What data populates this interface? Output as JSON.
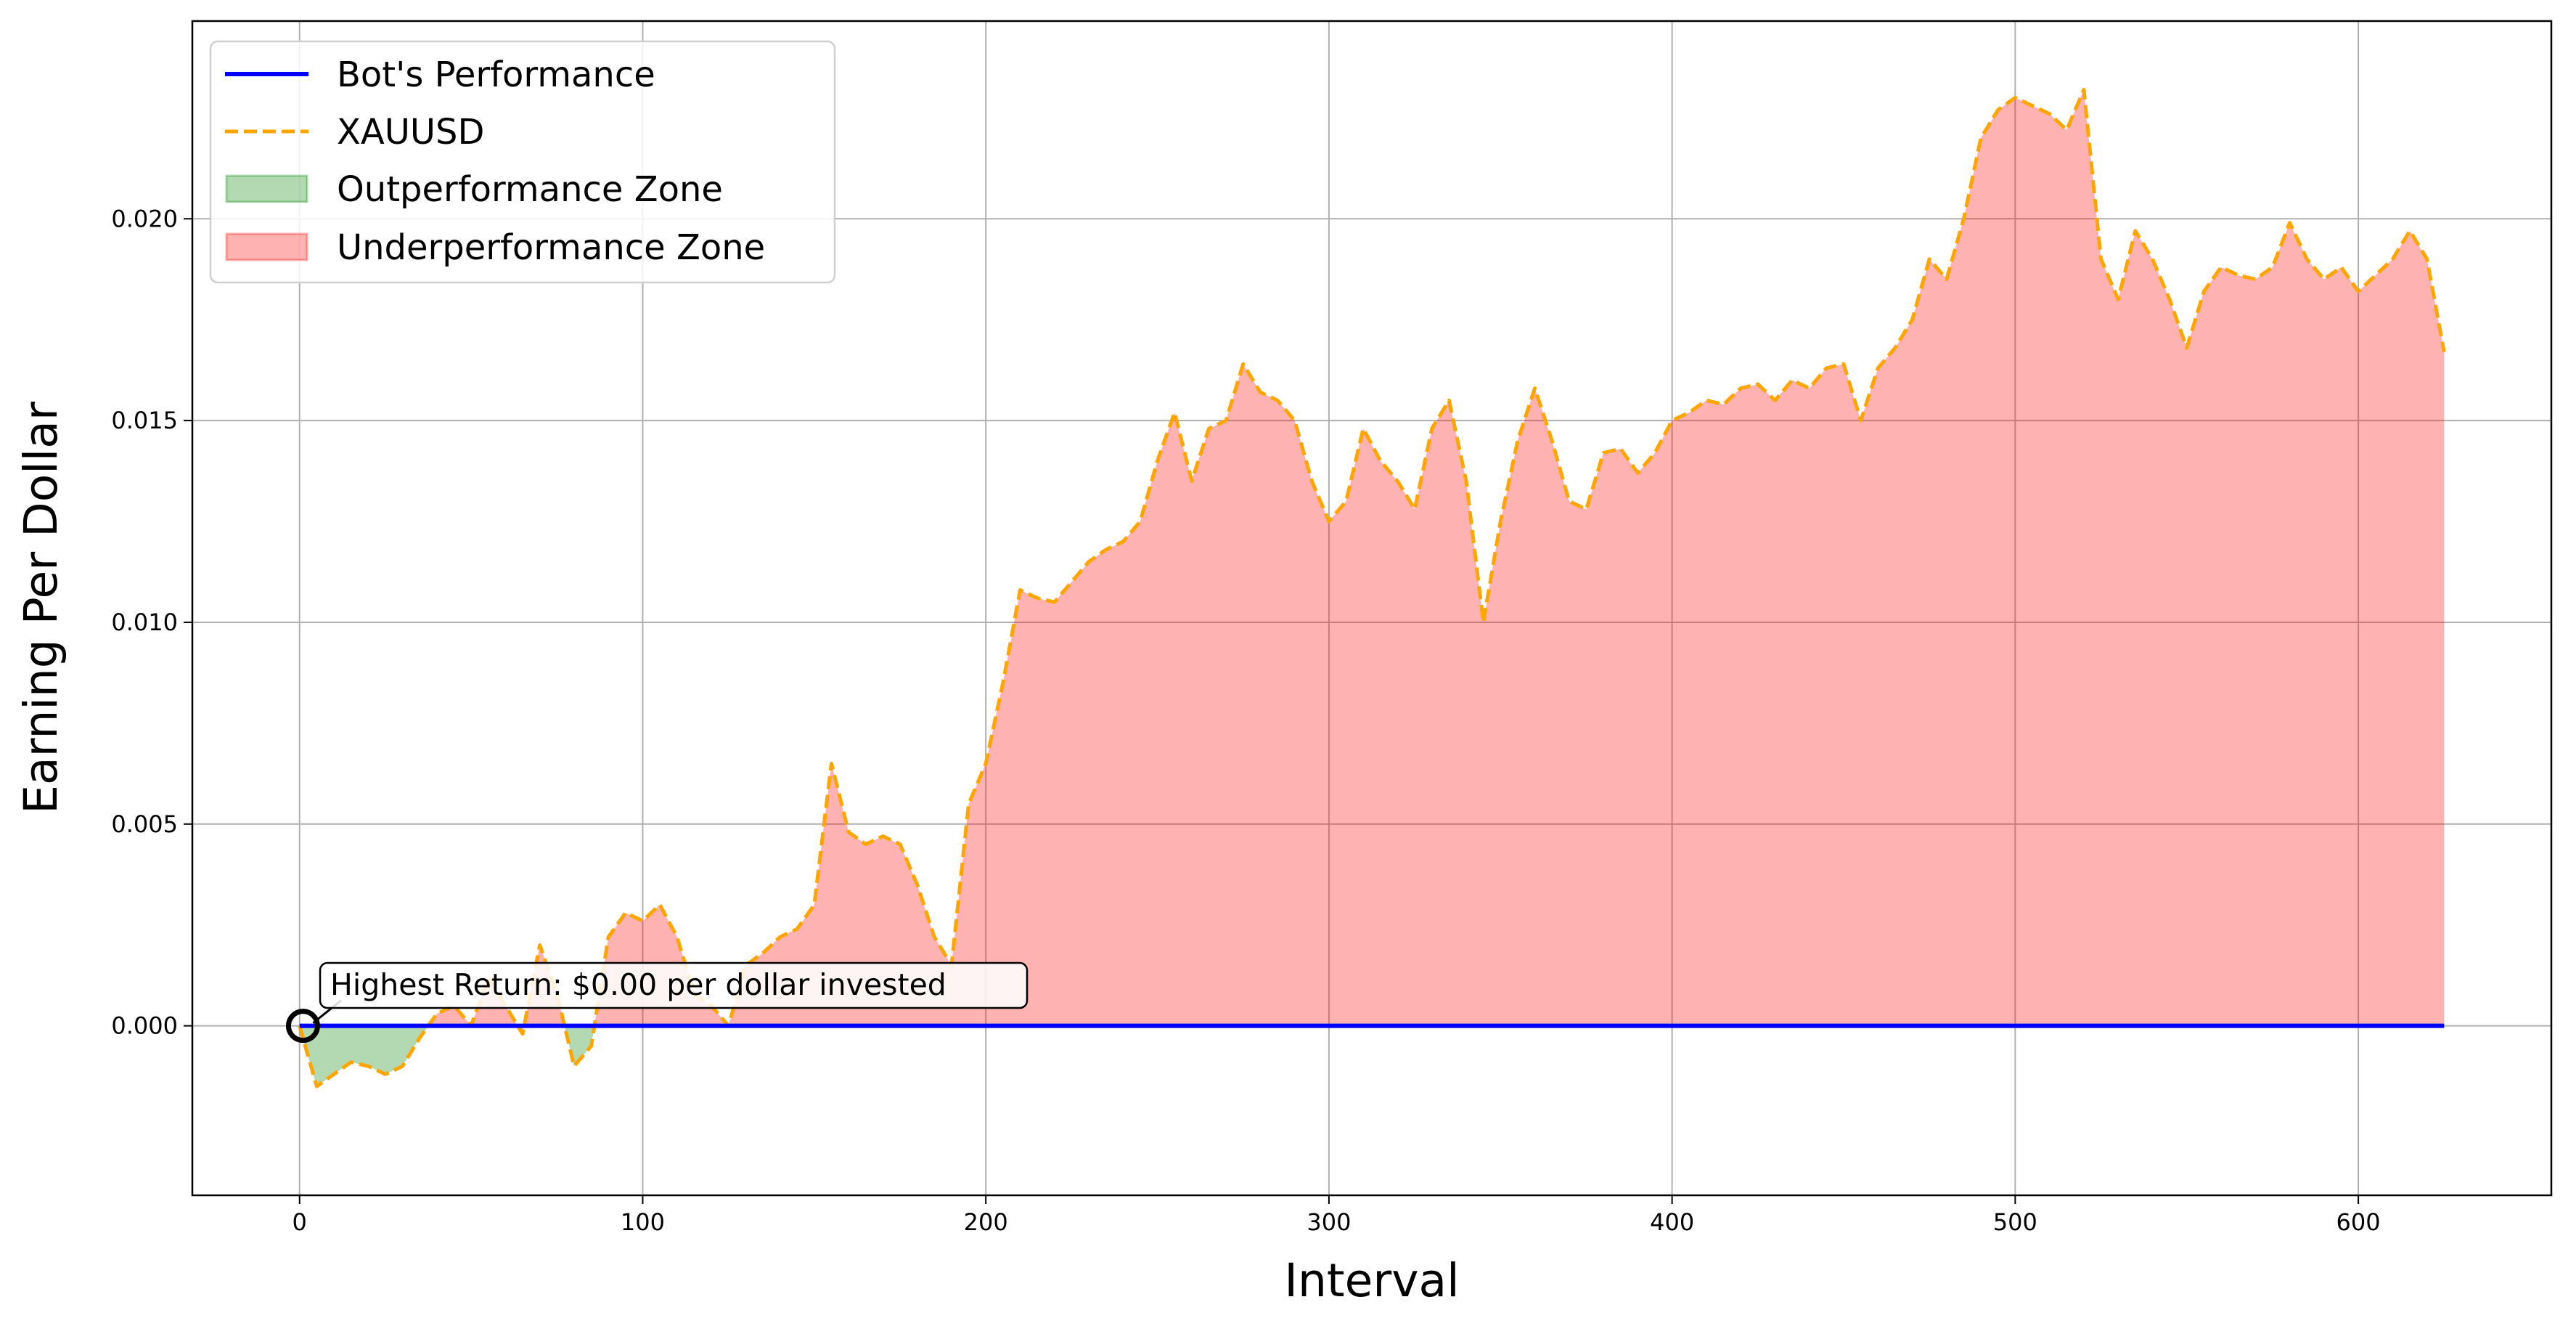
{
  "chart_data": {
    "type": "line",
    "xlabel": "Interval",
    "ylabel": "Earning Per Dollar",
    "x": [
      0,
      5,
      10,
      15,
      20,
      25,
      30,
      35,
      40,
      45,
      50,
      55,
      60,
      65,
      70,
      75,
      80,
      85,
      90,
      95,
      100,
      105,
      110,
      115,
      120,
      125,
      130,
      135,
      140,
      145,
      150,
      155,
      160,
      165,
      170,
      175,
      180,
      185,
      190,
      195,
      200,
      205,
      210,
      215,
      220,
      225,
      230,
      235,
      240,
      245,
      250,
      255,
      260,
      265,
      270,
      275,
      280,
      285,
      290,
      295,
      300,
      305,
      310,
      315,
      320,
      325,
      330,
      335,
      340,
      345,
      350,
      355,
      360,
      365,
      370,
      375,
      380,
      385,
      390,
      395,
      400,
      405,
      410,
      415,
      420,
      425,
      430,
      435,
      440,
      445,
      450,
      455,
      460,
      465,
      470,
      475,
      480,
      485,
      490,
      495,
      500,
      505,
      510,
      515,
      520,
      525,
      530,
      535,
      540,
      545,
      550,
      555,
      560,
      565,
      570,
      575,
      580,
      585,
      590,
      595,
      600,
      605,
      610,
      615,
      620,
      625
    ],
    "series": [
      {
        "name": "Bot's Performance",
        "color": "blue",
        "style": "solid",
        "values": [
          0,
          0,
          0,
          0,
          0,
          0,
          0,
          0,
          0,
          0,
          0,
          0,
          0,
          0,
          0,
          0,
          0,
          0,
          0,
          0,
          0,
          0,
          0,
          0,
          0,
          0,
          0,
          0,
          0,
          0,
          0,
          0,
          0,
          0,
          0,
          0,
          0,
          0,
          0,
          0,
          0,
          0,
          0,
          0,
          0,
          0,
          0,
          0,
          0,
          0,
          0,
          0,
          0,
          0,
          0,
          0,
          0,
          0,
          0,
          0,
          0,
          0,
          0,
          0,
          0,
          0,
          0,
          0,
          0,
          0,
          0,
          0,
          0,
          0,
          0,
          0,
          0,
          0,
          0,
          0,
          0,
          0,
          0,
          0,
          0,
          0,
          0,
          0,
          0,
          0,
          0,
          0,
          0,
          0,
          0,
          0,
          0,
          0,
          0,
          0,
          0,
          0,
          0,
          0,
          0,
          0,
          0,
          0,
          0,
          0,
          0,
          0,
          0,
          0,
          0,
          0,
          0,
          0,
          0,
          0,
          0,
          0,
          0,
          0,
          0,
          0
        ]
      },
      {
        "name": "XAUUSD",
        "color": "orange",
        "style": "dashed",
        "values": [
          0,
          -0.0015,
          -0.0012,
          -0.0009,
          -0.001,
          -0.0012,
          -0.001,
          -0.0003,
          0.0003,
          0.0005,
          0,
          0.0012,
          0.0005,
          -0.0002,
          0.002,
          0.0008,
          -0.001,
          -0.0005,
          0.0022,
          0.0028,
          0.0026,
          0.003,
          0.0022,
          0.0008,
          0.0005,
          0,
          0.0015,
          0.0018,
          0.0022,
          0.0024,
          0.003,
          0.0065,
          0.0048,
          0.0045,
          0.0047,
          0.0045,
          0.0035,
          0.0022,
          0.0015,
          0.0055,
          0.0065,
          0.0085,
          0.0108,
          0.0106,
          0.0105,
          0.011,
          0.0115,
          0.0118,
          0.012,
          0.0125,
          0.014,
          0.0152,
          0.0135,
          0.0148,
          0.015,
          0.0164,
          0.0157,
          0.0155,
          0.015,
          0.0135,
          0.0125,
          0.013,
          0.0148,
          0.014,
          0.0135,
          0.0128,
          0.0148,
          0.0155,
          0.0135,
          0.01,
          0.0125,
          0.0145,
          0.0158,
          0.0145,
          0.013,
          0.0128,
          0.0142,
          0.0143,
          0.0137,
          0.0142,
          0.015,
          0.0152,
          0.0155,
          0.0154,
          0.0158,
          0.0159,
          0.0155,
          0.016,
          0.0158,
          0.0163,
          0.0164,
          0.015,
          0.0163,
          0.0168,
          0.0175,
          0.019,
          0.0185,
          0.02,
          0.022,
          0.0227,
          0.023,
          0.0228,
          0.0226,
          0.0222,
          0.0232,
          0.019,
          0.018,
          0.0197,
          0.019,
          0.018,
          0.0168,
          0.0182,
          0.0188,
          0.0186,
          0.0185,
          0.0188,
          0.0199,
          0.019,
          0.0185,
          0.0188,
          0.0182,
          0.0186,
          0.019,
          0.0197,
          0.019,
          0.0167
        ]
      }
    ],
    "fills": [
      {
        "name": "Outperformance Zone",
        "color": "green",
        "alpha": 0.3
      },
      {
        "name": "Underperformance Zone",
        "color": "red",
        "alpha": 0.3
      }
    ],
    "annotations": [
      {
        "text": "Highest Return: $0.00 per dollar invested",
        "x": 1,
        "y": 0
      }
    ],
    "xlim": [
      -31.25,
      656.25
    ],
    "ylim": [
      -0.0042,
      0.0249
    ],
    "xticks": [
      0,
      100,
      200,
      300,
      400,
      500,
      600
    ],
    "yticks": [
      {
        "value": 0,
        "label": "0.000"
      },
      {
        "value": 0.005,
        "label": "0.005"
      },
      {
        "value": 0.01,
        "label": "0.010"
      },
      {
        "value": 0.015,
        "label": "0.015"
      },
      {
        "value": 0.02,
        "label": "0.020"
      }
    ],
    "grid": true,
    "legend": "upper left"
  }
}
